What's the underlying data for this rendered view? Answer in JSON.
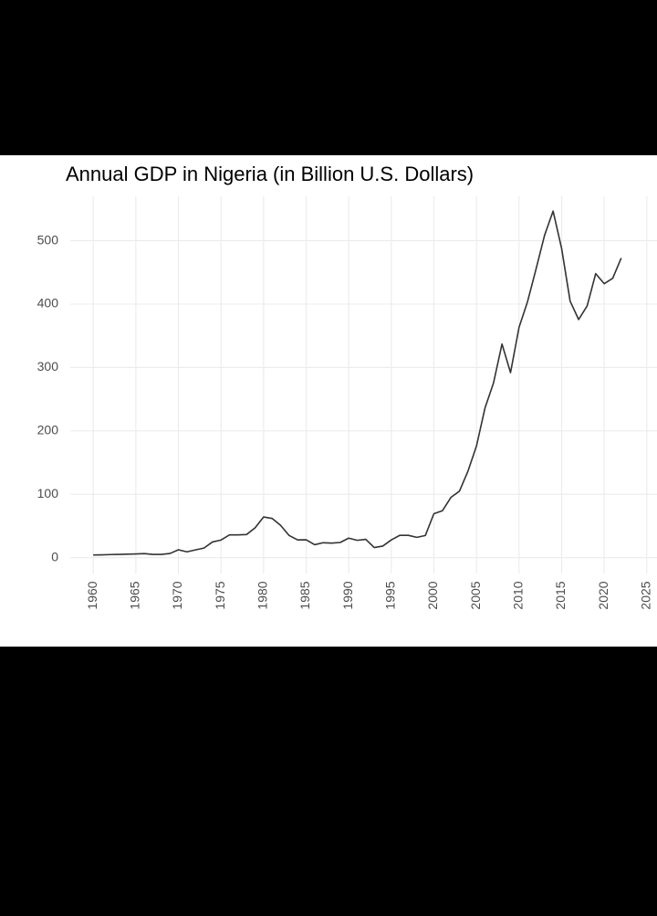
{
  "chart_data": {
    "type": "line",
    "title": "Annual GDP in Nigeria (in Billion U.S. Dollars)",
    "x": [
      1960,
      1961,
      1962,
      1963,
      1964,
      1965,
      1966,
      1967,
      1968,
      1969,
      1970,
      1971,
      1972,
      1973,
      1974,
      1975,
      1976,
      1977,
      1978,
      1979,
      1980,
      1981,
      1982,
      1983,
      1984,
      1985,
      1986,
      1987,
      1988,
      1989,
      1990,
      1991,
      1992,
      1993,
      1994,
      1995,
      1996,
      1997,
      1998,
      1999,
      2000,
      2001,
      2002,
      2003,
      2004,
      2005,
      2006,
      2007,
      2008,
      2009,
      2010,
      2011,
      2012,
      2013,
      2014,
      2015,
      2016,
      2017,
      2018,
      2019,
      2020,
      2021,
      2022
    ],
    "series": [
      {
        "name": "GDP",
        "color": "#333333",
        "values": [
          4.2,
          4.5,
          4.9,
          5.2,
          5.5,
          5.9,
          6.4,
          5.2,
          5.2,
          6.6,
          12.5,
          9.2,
          12.3,
          15.2,
          24.8,
          27.8,
          36.0,
          36.0,
          36.5,
          47.0,
          64.2,
          61.9,
          51.0,
          35.0,
          28.0,
          28.2,
          20.5,
          23.6,
          23.0,
          24.0,
          30.8,
          27.4,
          29.0,
          16.0,
          18.3,
          28.0,
          35.3,
          35.2,
          32.1,
          35.0,
          69.4,
          74.0,
          95.1,
          104.9,
          136.4,
          176.1,
          236.1,
          275.6,
          337.0,
          291.9,
          363.4,
          404.0,
          455.5,
          508.7,
          546.7,
          487.8,
          404.6,
          375.7,
          397.2,
          448.1,
          432.2,
          440.8,
          472.6
        ]
      }
    ],
    "xlim": [
      1957.3,
      2026.2
    ],
    "xticks": [
      1960,
      1965,
      1970,
      1975,
      1980,
      1985,
      1990,
      1995,
      2000,
      2005,
      2010,
      2015,
      2020,
      2025
    ],
    "ylim": [
      -25,
      570
    ],
    "yticks": [
      0,
      100,
      200,
      300,
      400,
      500
    ],
    "grid": true
  }
}
